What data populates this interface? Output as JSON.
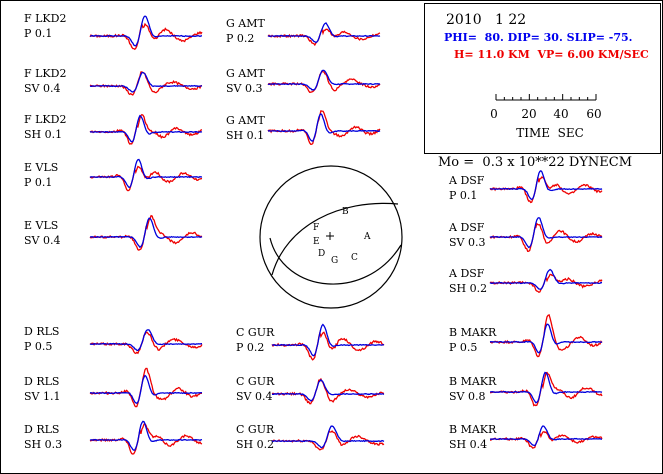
{
  "header": {
    "date": "2010   1 22",
    "mechanism": "PHI=  80. DIP= 30. SLIP= -75.",
    "depth_velocity": "H= 11.0 KM  VP= 6.00 KM/SEC",
    "moment": "Mo =  0.3 x 10**22 DYNECM"
  },
  "time_scale": {
    "tick_labels": [
      "0",
      "20",
      "40",
      "60"
    ],
    "label": "TIME  SEC"
  },
  "focal_sphere": {
    "stations": [
      {
        "code": "B"
      },
      {
        "code": "F"
      },
      {
        "code": "E"
      },
      {
        "code": "D"
      },
      {
        "code": "G"
      },
      {
        "code": "C"
      },
      {
        "code": "A"
      }
    ]
  },
  "colors": {
    "observed": "#ee0000",
    "synthetic": "#0000dd",
    "mechanism_text": "#0000ee",
    "depth_text": "#ee0000",
    "ink": "#000000"
  },
  "traces": [
    {
      "station": "F LKD2",
      "phase": "P  0.1",
      "seed": 1
    },
    {
      "station": "F LKD2",
      "phase": "SV 0.4",
      "seed": 2
    },
    {
      "station": "F LKD2",
      "phase": "SH 0.1",
      "seed": 3
    },
    {
      "station": "E VLS",
      "phase": "P  0.1",
      "seed": 4
    },
    {
      "station": "E VLS",
      "phase": "SV 0.4",
      "seed": 5
    },
    {
      "station": "G AMT",
      "phase": "P  0.2",
      "seed": 6
    },
    {
      "station": "G AMT",
      "phase": "SV 0.3",
      "seed": 7
    },
    {
      "station": "G AMT",
      "phase": "SH 0.1",
      "seed": 8
    },
    {
      "station": "A DSF",
      "phase": "P  0.1",
      "seed": 9
    },
    {
      "station": "A DSF",
      "phase": "SV 0.3",
      "seed": 10
    },
    {
      "station": "A DSF",
      "phase": "SH 0.2",
      "seed": 11
    },
    {
      "station": "D RLS",
      "phase": "P  0.5",
      "seed": 12
    },
    {
      "station": "D RLS",
      "phase": "SV 1.1",
      "seed": 13
    },
    {
      "station": "D RLS",
      "phase": "SH 0.3",
      "seed": 14
    },
    {
      "station": "C GUR",
      "phase": "P  0.2",
      "seed": 15
    },
    {
      "station": "C GUR",
      "phase": "SV 0.4",
      "seed": 16
    },
    {
      "station": "C GUR",
      "phase": "SH 0.2",
      "seed": 17
    },
    {
      "station": "B MAKR",
      "phase": "P  0.5",
      "seed": 18
    },
    {
      "station": "B MAKR",
      "phase": "SV 0.8",
      "seed": 19
    },
    {
      "station": "B MAKR",
      "phase": "SH 0.4",
      "seed": 20
    }
  ]
}
